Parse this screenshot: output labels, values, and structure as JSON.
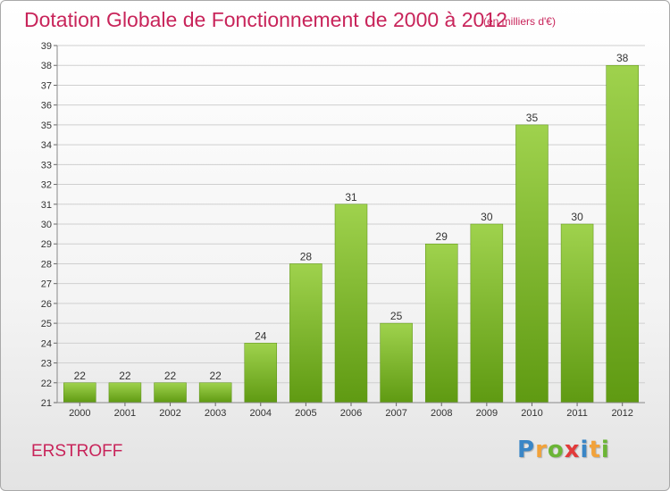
{
  "header": {
    "title": "Dotation Globale de Fonctionnement de 2000 à 2012",
    "subtitle": "(en milliers d'€)"
  },
  "footer": {
    "commune": "ERSTROFF",
    "logo_text": "Proxiti"
  },
  "colors": {
    "accent": "#c8245a",
    "bar_top": "#9fd24d",
    "bar_bottom": "#5f9a12"
  },
  "chart_data": {
    "type": "bar",
    "title": "Dotation Globale de Fonctionnement de 2000 à 2012",
    "subtitle": "(en milliers d'€)",
    "categories": [
      "2000",
      "2001",
      "2002",
      "2003",
      "2004",
      "2005",
      "2006",
      "2007",
      "2008",
      "2009",
      "2010",
      "2011",
      "2012"
    ],
    "values": [
      22,
      22,
      22,
      22,
      24,
      28,
      31,
      25,
      29,
      30,
      35,
      30,
      38
    ],
    "ylim": [
      21,
      39
    ],
    "yticks": [
      21,
      22,
      23,
      24,
      25,
      26,
      27,
      28,
      29,
      30,
      31,
      32,
      33,
      34,
      35,
      36,
      37,
      38,
      39
    ],
    "grid": true,
    "legend": "none"
  }
}
